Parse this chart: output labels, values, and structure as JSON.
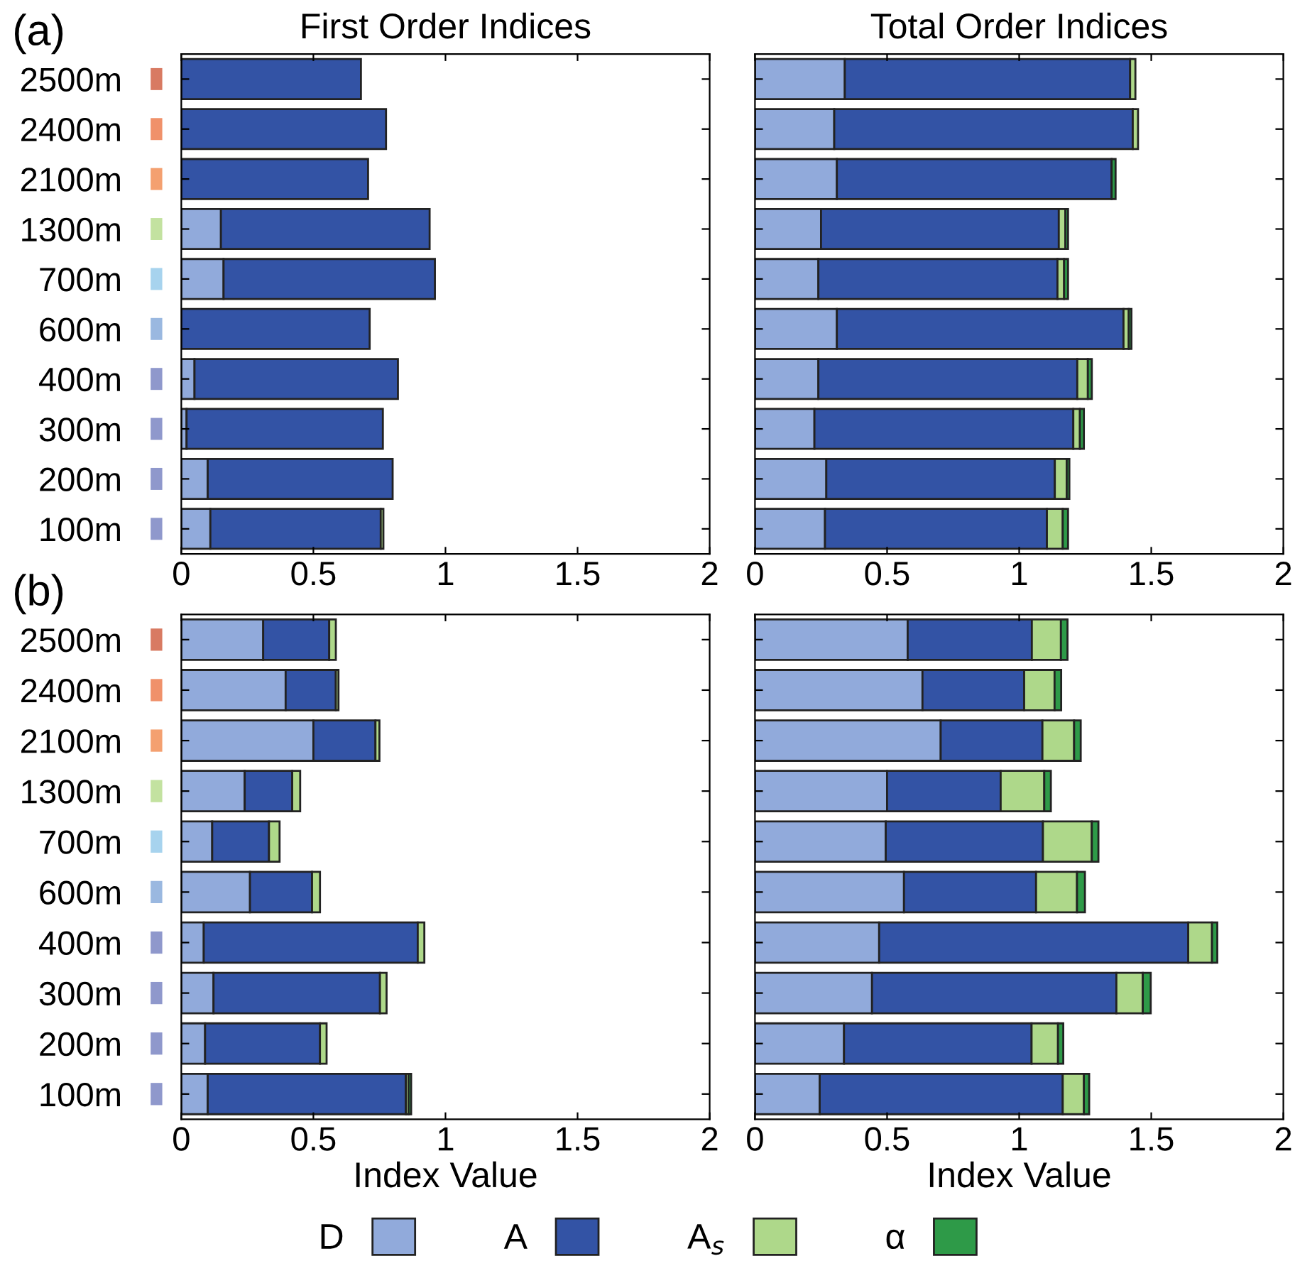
{
  "chart_data": [
    {
      "type": "bar",
      "orientation": "horizontal",
      "stacked": true,
      "title": "First Order Indices",
      "annotations": [
        "(a)"
      ],
      "categories": [
        "2500m",
        "2400m",
        "2100m",
        "1300m",
        "700m",
        "600m",
        "400m",
        "300m",
        "200m",
        "100m"
      ],
      "series": [
        {
          "name": "D",
          "color": "#91aadb",
          "values": [
            null,
            null,
            null,
            0.15,
            0.16,
            null,
            0.05,
            0.02,
            0.1,
            0.11
          ]
        },
        {
          "name": "A",
          "color": "#3353a5",
          "values": [
            0.68,
            0.775,
            0.707,
            0.79,
            0.8,
            0.713,
            0.77,
            0.743,
            0.7,
            0.645
          ]
        },
        {
          "name": "A$_{s}$",
          "color": "#aed88a",
          "values": [
            null,
            null,
            null,
            null,
            null,
            null,
            null,
            null,
            null,
            0.01
          ]
        },
        {
          "name": "α",
          "color": "#2e9a48",
          "values": [
            null,
            null,
            null,
            null,
            null,
            null,
            null,
            null,
            null,
            null
          ]
        }
      ],
      "xlim": [
        0,
        2
      ],
      "xticks": [
        0,
        0.5,
        1,
        1.5,
        2
      ],
      "legend": "bottom"
    },
    {
      "type": "bar",
      "orientation": "horizontal",
      "stacked": true,
      "title": "Total Order Indices",
      "tick_labels": "x",
      "categories": [
        null,
        null,
        null,
        null,
        null,
        null,
        null,
        null,
        null,
        null
      ],
      "series": [
        {
          "color": "#91aadb",
          "values": [
            0.34,
            0.3,
            0.31,
            0.25,
            0.24,
            0.31,
            0.24,
            0.225,
            0.27,
            0.265
          ]
        },
        {
          "color": "#3353a5",
          "values": [
            1.08,
            1.13,
            1.04,
            0.9,
            0.905,
            1.085,
            0.98,
            0.98,
            0.865,
            0.84
          ]
        },
        {
          "color": "#aed88a",
          "values": [
            0.02,
            0.02,
            null,
            0.025,
            0.025,
            0.02,
            0.04,
            0.025,
            0.045,
            0.06
          ]
        },
        {
          "color": "#2e9a48",
          "values": [
            null,
            null,
            0.015,
            0.01,
            0.015,
            0.01,
            0.015,
            0.015,
            0.01,
            0.02
          ]
        }
      ],
      "xlim": [
        0,
        2
      ],
      "xticks": [
        0,
        0.5,
        1,
        1.5,
        2
      ]
    },
    {
      "type": "bar",
      "orientation": "horizontal",
      "stacked": true,
      "xlabel": "Index Value",
      "annotations": [
        "(b)"
      ],
      "categories": [
        "2500m",
        "2400m",
        "2100m",
        "1300m",
        "700m",
        "600m",
        "400m",
        "300m",
        "200m",
        "100m"
      ],
      "series": [
        {
          "color": "#91aadb",
          "values": [
            0.31,
            0.395,
            0.5,
            0.24,
            0.117,
            0.26,
            0.085,
            0.122,
            0.09,
            0.1
          ]
        },
        {
          "color": "#3353a5",
          "values": [
            0.25,
            0.19,
            0.235,
            0.18,
            0.215,
            0.235,
            0.81,
            0.63,
            0.435,
            0.75
          ]
        },
        {
          "color": "#aed88a",
          "values": [
            0.025,
            0.01,
            0.015,
            0.03,
            0.04,
            0.03,
            0.025,
            0.025,
            0.025,
            0.01
          ]
        },
        {
          "color": "#2e9a48",
          "values": [
            null,
            null,
            null,
            null,
            null,
            null,
            null,
            null,
            null,
            0.01
          ]
        }
      ],
      "xlim": [
        0,
        2
      ],
      "xticks": [
        0,
        0.5,
        1,
        1.5,
        2
      ]
    },
    {
      "type": "bar",
      "orientation": "horizontal",
      "stacked": true,
      "xlabel": "Index Value",
      "tick_labels": "x",
      "categories": [
        null,
        null,
        null,
        null,
        null,
        null,
        null,
        null,
        null,
        null
      ],
      "series": [
        {
          "color": "#91aadb",
          "values": [
            0.578,
            0.634,
            0.703,
            0.5,
            0.495,
            0.564,
            0.47,
            0.443,
            0.337,
            0.245
          ]
        },
        {
          "color": "#3353a5",
          "values": [
            0.47,
            0.385,
            0.385,
            0.43,
            0.595,
            0.5,
            1.17,
            0.925,
            0.71,
            0.92
          ]
        },
        {
          "color": "#aed88a",
          "values": [
            0.11,
            0.115,
            0.12,
            0.165,
            0.185,
            0.155,
            0.09,
            0.1,
            0.1,
            0.08
          ]
        },
        {
          "color": "#2e9a48",
          "values": [
            0.025,
            0.025,
            0.025,
            0.025,
            0.025,
            0.03,
            0.02,
            0.03,
            0.02,
            0.02
          ]
        }
      ],
      "xlim": [
        0,
        2
      ],
      "xticks": [
        0,
        0.5,
        1,
        1.5,
        2
      ]
    }
  ]
}
